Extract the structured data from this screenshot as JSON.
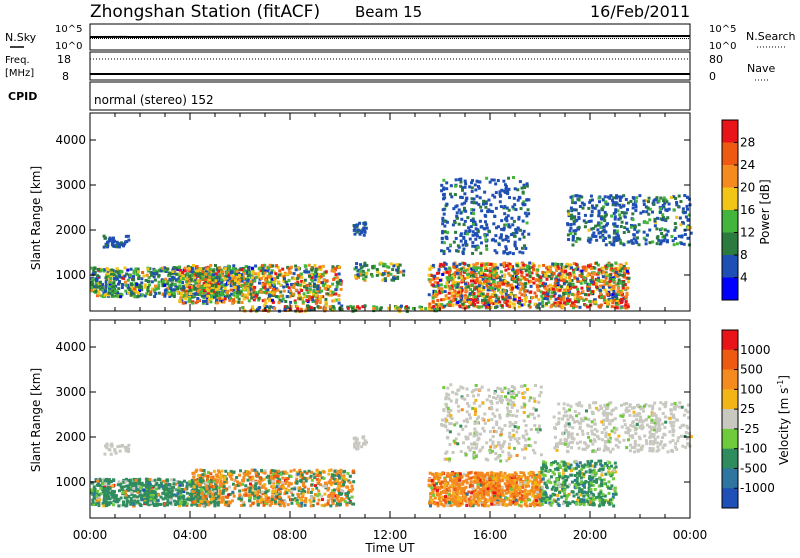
{
  "header": {
    "station": "Zhongshan Station (fitACF)",
    "beam": "Beam 15",
    "date": "16/Feb/2011"
  },
  "nsky_panel": {
    "left_label": "N.Sky",
    "right_label": "N.Search",
    "left_ticks": [
      "10^5",
      "10^0"
    ],
    "right_ticks": [
      "10^5",
      "10^0"
    ]
  },
  "freq_panel": {
    "left_label_line1": "Freq.",
    "left_label_line2": "[MHz]",
    "right_label": "Nave",
    "left_ticks": [
      "18",
      "8"
    ],
    "right_ticks": [
      "80",
      "0"
    ]
  },
  "cpid_panel": {
    "label": "CPID",
    "text": "normal (stereo) 152"
  },
  "chart_data": [
    {
      "type": "heatmap",
      "name": "power",
      "ylabel": "Slant Range [km]",
      "ylim": [
        200,
        4600
      ],
      "y_ticks": [
        "1000",
        "2000",
        "3000",
        "4000"
      ],
      "x_ticks": [
        "00:00",
        "04:00",
        "08:00",
        "12:00",
        "16:00",
        "20:00",
        "00:00"
      ],
      "colorbar": {
        "label": "Power [dB]",
        "ticks": [
          "4",
          "8",
          "12",
          "16",
          "20",
          "24",
          "28"
        ],
        "colors": [
          "#0000ff",
          "#1f4fb4",
          "#2c7a3e",
          "#44b53c",
          "#f2c516",
          "#f58a1f",
          "#ee5a12",
          "#e8141a"
        ]
      }
    },
    {
      "type": "heatmap",
      "name": "velocity",
      "ylabel": "Slant Range [km]",
      "ylim": [
        200,
        4600
      ],
      "y_ticks": [
        "1000",
        "2000",
        "3000",
        "4000"
      ],
      "x_ticks": [
        "00:00",
        "04:00",
        "08:00",
        "12:00",
        "16:00",
        "20:00",
        "00:00"
      ],
      "xlabel": "Time UT",
      "colorbar": {
        "label": "Velocity [m s",
        "label_sup": "-1",
        "label_close": "]",
        "ticks": [
          "1000",
          "500",
          "100",
          "25",
          "-25",
          "-100",
          "-500",
          "-1000"
        ],
        "colors": [
          "#1f50b7",
          "#2e76a0",
          "#2e8c5e",
          "#6fcb3c",
          "#c8c8c0",
          "#f2b417",
          "#f58a1f",
          "#ee5a12",
          "#e8141a"
        ]
      }
    }
  ]
}
